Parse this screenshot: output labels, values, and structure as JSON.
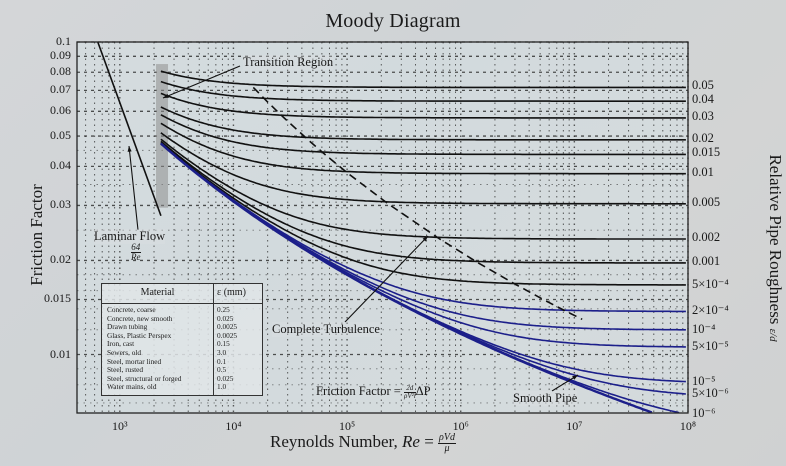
{
  "chart_data": {
    "type": "line",
    "title": "Moody Diagram",
    "xlabel": "Reynolds Number, Re = ρVd/μ",
    "ylabel": "Friction Factor",
    "y2label": "Relative Pipe Roughness ε/d",
    "xscale": "log",
    "yscale": "log",
    "xlim": [
      420,
      100000000
    ],
    "ylim": [
      0.0065,
      0.1
    ],
    "grid": true,
    "x_ticks": [
      {
        "value": 1000,
        "label": "10³"
      },
      {
        "value": 10000,
        "label": "10⁴"
      },
      {
        "value": 100000,
        "label": "10⁵"
      },
      {
        "value": 1000000,
        "label": "10⁶"
      },
      {
        "value": 10000000,
        "label": "10⁷"
      },
      {
        "value": 100000000,
        "label": "10⁸"
      }
    ],
    "y_ticks": [
      {
        "value": 0.1,
        "label": "0.1"
      },
      {
        "value": 0.09,
        "label": "0.09"
      },
      {
        "value": 0.08,
        "label": "0.08"
      },
      {
        "value": 0.07,
        "label": "0.07"
      },
      {
        "value": 0.06,
        "label": "0.06"
      },
      {
        "value": 0.05,
        "label": "0.05"
      },
      {
        "value": 0.04,
        "label": "0.04"
      },
      {
        "value": 0.03,
        "label": "0.03"
      },
      {
        "value": 0.02,
        "label": "0.02"
      },
      {
        "value": 0.015,
        "label": "0.015"
      },
      {
        "value": 0.01,
        "label": "0.01"
      }
    ],
    "relative_roughness": [
      {
        "value": 0.05,
        "label": "0.05"
      },
      {
        "value": 0.04,
        "label": "0.04"
      },
      {
        "value": 0.03,
        "label": "0.03"
      },
      {
        "value": 0.02,
        "label": "0.02"
      },
      {
        "value": 0.015,
        "label": "0.015"
      },
      {
        "value": 0.01,
        "label": "0.01"
      },
      {
        "value": 0.005,
        "label": "0.005"
      },
      {
        "value": 0.002,
        "label": "0.002"
      },
      {
        "value": 0.001,
        "label": "0.001"
      },
      {
        "value": 0.0005,
        "label": "5×10⁻⁴"
      },
      {
        "value": 0.0002,
        "label": "2×10⁻⁴"
      },
      {
        "value": 0.0001,
        "label": "10⁻⁴"
      },
      {
        "value": 5e-05,
        "label": "5×10⁻⁵"
      },
      {
        "value": 1e-05,
        "label": "10⁻⁵"
      },
      {
        "value": 5e-06,
        "label": "5×10⁻⁶"
      },
      {
        "value": 1e-06,
        "label": "10⁻⁶"
      },
      {
        "value": 0,
        "label": "Smooth Pipe"
      }
    ],
    "series": [
      {
        "name": "Laminar Flow (64/Re)",
        "x": [
          640,
          2300
        ],
        "y": [
          0.1,
          0.0278
        ]
      },
      {
        "name": "Turbulent curves (Colebrook), Re from 2300 to 1e8",
        "note": "one curve per relative roughness value"
      },
      {
        "name": "Complete Turbulence boundary (dashed)",
        "style": "dashed"
      }
    ],
    "annotations": [
      "Transition Region",
      "Laminar Flow 64/Re",
      "Complete Turbulence",
      "Smooth Pipe",
      "Friction Factor = 2d/(ρV²l) ΔP"
    ]
  },
  "title": "Moody Diagram",
  "axes": {
    "ylabel_left": "Friction Factor",
    "ylabel_right": "Relative Pipe Roughness",
    "ylabel_right_symbol": "ε/d",
    "xlabel_prefix": "Reynolds Number, ",
    "xlabel_re": "Re",
    "xlabel_eq": " = ",
    "xlabel_num": "ρVd",
    "xlabel_den": "μ"
  },
  "annotations": {
    "transition_region": "Transition Region",
    "laminar_flow": "Laminar Flow",
    "laminar_num": "64",
    "laminar_den": "Re",
    "complete_turbulence": "Complete Turbulence",
    "smooth_pipe": "Smooth Pipe",
    "ff_prefix": "Friction Factor = ",
    "ff_num": "2d",
    "ff_den": "ρV²l",
    "ff_suffix": "ΔP"
  },
  "table": {
    "headers": [
      "Material",
      "ε (mm)"
    ],
    "rows": [
      [
        "Concrete, coarse",
        "0.25"
      ],
      [
        "Concrete, new smooth",
        "0.025"
      ],
      [
        "Drawn tubing",
        "0.0025"
      ],
      [
        "Glass, Plastic Perspex",
        "0.0025"
      ],
      [
        "Iron, cast",
        "0.15"
      ],
      [
        "Sewers, old",
        "3.0"
      ],
      [
        "Steel, mortar lined",
        "0.1"
      ],
      [
        "Steel, rusted",
        "0.5"
      ],
      [
        "Steel, structural or forged",
        "0.025"
      ],
      [
        "Water mains, old",
        "1.0"
      ]
    ]
  },
  "colors": {
    "curve": "#111111",
    "smooth_curve": "#1c1f8a",
    "grid": "#2a2a2a",
    "transition_shade": "#8e8e8e"
  }
}
